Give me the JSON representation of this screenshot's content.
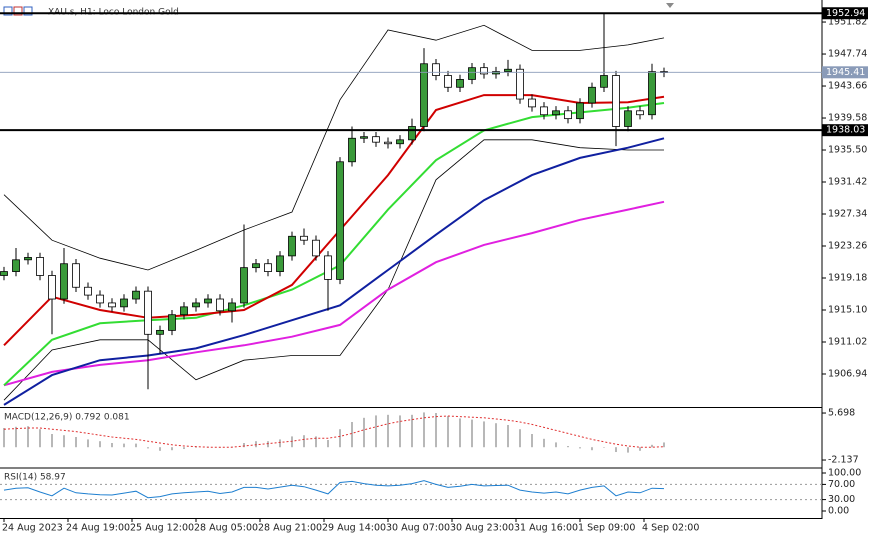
{
  "chart_data": [
    {
      "type": "candlestick",
      "title": "XAU.s, H1: Loco London Gold",
      "xlim": [
        -1,
        204.5
      ],
      "ylim": [
        1902.73,
        1954.63
      ],
      "yticks": [
        1951.82,
        1947.74,
        1943.66,
        1939.58,
        {
          "value": 1935.5,
          "label": "1935.50"
        },
        1931.42,
        1927.34,
        1923.26,
        1919.18,
        {
          "value": 1915.1,
          "label": "1915.10"
        },
        1911.02,
        1906.94
      ],
      "xticks": [
        {
          "value": 0,
          "label": "24 Aug 2023"
        },
        {
          "value": 16,
          "label": "24 Aug 19:00"
        },
        {
          "value": 32,
          "label": "25 Aug 12:00"
        },
        {
          "value": 48,
          "label": "28 Aug 05:00"
        },
        {
          "value": 64,
          "label": "28 Aug 21:00"
        },
        {
          "value": 80,
          "label": "29 Aug 14:00"
        },
        {
          "value": 96,
          "label": "30 Aug 07:00"
        },
        {
          "value": 112,
          "label": "30 Aug 23:00"
        },
        {
          "value": 128,
          "label": "31 Aug 16:00"
        },
        {
          "value": 144,
          "label": "1 Sep 09:00"
        },
        {
          "value": 160,
          "label": "4 Sep 02:00"
        }
      ],
      "bull_color": "#3a9a3a",
      "bear_color": "#ffffff",
      "x": [
        0,
        3,
        6,
        9,
        12,
        15,
        18,
        21,
        24,
        27,
        30,
        33,
        36,
        39,
        42,
        45,
        48,
        51,
        54,
        57,
        60,
        63,
        66,
        69,
        72,
        75,
        78,
        81,
        84,
        87,
        90,
        93,
        96,
        99,
        102,
        105,
        108,
        111,
        114,
        117,
        120,
        123,
        126,
        129,
        132,
        135,
        138,
        141,
        144,
        147,
        150,
        153,
        156,
        159,
        162,
        165
      ],
      "open": [
        1919.5,
        1920.0,
        1921.5,
        1921.8,
        1919.5,
        1916.5,
        1921.0,
        1918.0,
        1917.0,
        1916.0,
        1915.5,
        1916.5,
        1917.5,
        1912.0,
        1912.5,
        1914.5,
        1915.5,
        1916.0,
        1916.5,
        1915.0,
        1916.0,
        1920.5,
        1921.0,
        1920.0,
        1922.0,
        1924.5,
        1924.0,
        1922.0,
        1919.0,
        1934.0,
        1937.0,
        1937.2,
        1936.5,
        1936.3,
        1936.8,
        1938.5,
        1946.5,
        1945.0,
        1943.5,
        1944.5,
        1946.0,
        1945.2,
        1945.5,
        1945.8,
        1942.0,
        1941.0,
        1940.0,
        1940.5,
        1939.5,
        1941.5,
        1943.5,
        1945.0,
        1938.5,
        1940.5,
        1940.0,
        1945.5
      ],
      "high": [
        1920.6,
        1923.0,
        1922.4,
        1922.4,
        1920.1,
        1923.0,
        1921.6,
        1918.6,
        1917.6,
        1916.6,
        1917.1,
        1918.1,
        1918.1,
        1913.1,
        1915.1,
        1916.1,
        1916.6,
        1917.1,
        1917.1,
        1916.6,
        1926.0,
        1921.6,
        1921.6,
        1922.6,
        1925.1,
        1925.5,
        1924.6,
        1922.6,
        1934.6,
        1938.5,
        1937.8,
        1937.8,
        1937.1,
        1937.4,
        1939.5,
        1948.5,
        1947.1,
        1945.6,
        1945.1,
        1946.6,
        1946.6,
        1946.1,
        1947.0,
        1946.4,
        1942.6,
        1941.6,
        1941.1,
        1941.1,
        1942.1,
        1944.1,
        1953.0,
        1945.6,
        1941.1,
        1941.1,
        1946.5,
        1946.0
      ],
      "low": [
        1918.9,
        1919.4,
        1920.9,
        1918.9,
        1912.0,
        1915.9,
        1917.4,
        1916.4,
        1915.4,
        1914.9,
        1914.9,
        1915.9,
        1905.0,
        1909.5,
        1911.9,
        1913.9,
        1914.9,
        1915.4,
        1914.4,
        1913.5,
        1915.4,
        1919.9,
        1919.4,
        1919.4,
        1921.4,
        1923.4,
        1921.4,
        1915.0,
        1918.4,
        1933.4,
        1936.4,
        1935.9,
        1935.7,
        1935.7,
        1936.2,
        1937.9,
        1944.4,
        1942.9,
        1942.9,
        1943.9,
        1944.6,
        1944.6,
        1944.9,
        1941.4,
        1940.4,
        1939.4,
        1939.4,
        1938.9,
        1938.9,
        1940.9,
        1942.9,
        1936.0,
        1937.9,
        1939.4,
        1939.4,
        1944.8
      ],
      "close": [
        1920.0,
        1921.5,
        1921.8,
        1919.5,
        1916.5,
        1921.0,
        1918.0,
        1917.0,
        1916.0,
        1915.5,
        1916.5,
        1917.5,
        1912.0,
        1912.5,
        1914.5,
        1915.5,
        1916.0,
        1916.5,
        1915.0,
        1916.0,
        1920.5,
        1921.0,
        1920.0,
        1922.0,
        1924.5,
        1924.0,
        1922.0,
        1919.0,
        1934.0,
        1937.0,
        1937.2,
        1936.5,
        1936.3,
        1936.8,
        1938.5,
        1946.5,
        1945.0,
        1943.5,
        1944.5,
        1946.0,
        1945.2,
        1945.5,
        1945.8,
        1942.0,
        1941.0,
        1940.0,
        1940.5,
        1939.5,
        1941.5,
        1943.5,
        1945.0,
        1938.5,
        1940.5,
        1940.0,
        1945.5,
        1945.41
      ],
      "series": [
        {
          "color": "#000000",
          "width": 0.8,
          "x": [
            0,
            12,
            24,
            36,
            48,
            60,
            72,
            84,
            96,
            108,
            120,
            132,
            144,
            156,
            165
          ],
          "values": [
            1929.8,
            1924.0,
            1921.7,
            1920.2,
            1922.7,
            1925.3,
            1927.6,
            1941.9,
            1950.8,
            1949.5,
            1951.4,
            1948.2,
            1948.2,
            1948.9,
            1949.8
          ]
        },
        {
          "color": "#000000",
          "width": 0.8,
          "x": [
            0,
            12,
            24,
            36,
            48,
            60,
            72,
            84,
            96,
            108,
            120,
            132,
            144,
            156,
            165
          ],
          "values": [
            1903.6,
            1910.0,
            1911.3,
            1911.3,
            1906.2,
            1908.7,
            1909.3,
            1909.3,
            1917.7,
            1931.7,
            1936.8,
            1936.8,
            1935.8,
            1935.5,
            1935.5
          ]
        },
        {
          "color": "#e020e0",
          "width": 2,
          "x": [
            0,
            12,
            24,
            36,
            48,
            60,
            72,
            84,
            96,
            108,
            120,
            132,
            144,
            156,
            165
          ],
          "values": [
            1905.5,
            1907.2,
            1908.1,
            1908.7,
            1909.7,
            1910.6,
            1911.7,
            1913.2,
            1917.7,
            1921.2,
            1923.4,
            1924.9,
            1926.6,
            1927.9,
            1928.9
          ]
        },
        {
          "color": "#1020a0",
          "width": 2,
          "x": [
            0,
            12,
            24,
            36,
            48,
            60,
            72,
            84,
            96,
            108,
            120,
            132,
            144,
            156,
            165
          ],
          "values": [
            1903.0,
            1906.8,
            1908.7,
            1909.3,
            1910.2,
            1911.9,
            1913.8,
            1915.7,
            1920.2,
            1924.7,
            1929.1,
            1932.3,
            1934.5,
            1935.8,
            1937.0
          ]
        },
        {
          "color": "#33dd33",
          "width": 2,
          "x": [
            0,
            12,
            24,
            36,
            48,
            60,
            72,
            84,
            96,
            108,
            120,
            132,
            144,
            156,
            165
          ],
          "values": [
            1905.5,
            1911.3,
            1913.4,
            1913.8,
            1914.1,
            1915.7,
            1917.7,
            1920.8,
            1927.9,
            1934.2,
            1938.0,
            1939.7,
            1940.3,
            1940.9,
            1941.5
          ]
        },
        {
          "color": "#d00000",
          "width": 2,
          "x": [
            0,
            12,
            24,
            36,
            48,
            60,
            72,
            84,
            96,
            108,
            120,
            132,
            144,
            156,
            165
          ],
          "values": [
            1910.6,
            1916.8,
            1915.1,
            1914.1,
            1914.5,
            1915.1,
            1918.3,
            1925.3,
            1932.3,
            1940.6,
            1942.5,
            1942.5,
            1941.5,
            1941.6,
            1942.3
          ]
        }
      ],
      "levels": [
        {
          "value": 1952.94,
          "color": "#000000",
          "width": 2
        },
        {
          "value": 1938.03,
          "color": "#000000",
          "width": 2
        },
        {
          "value": 1945.41,
          "color": "#8a9bb8",
          "width": 0.8
        }
      ]
    },
    {
      "type": "macd",
      "title": "MACD(12,26,9) 0.792 0.081",
      "xlim": [
        -1,
        204.5
      ],
      "ylim": [
        -3.3,
        6.37
      ],
      "yticks": [
        5.698,
        -2.137
      ],
      "x": [
        0,
        3,
        6,
        9,
        12,
        15,
        18,
        21,
        24,
        27,
        30,
        33,
        36,
        39,
        42,
        45,
        48,
        51,
        54,
        57,
        60,
        63,
        66,
        69,
        72,
        75,
        78,
        81,
        84,
        87,
        90,
        93,
        96,
        99,
        102,
        105,
        108,
        111,
        114,
        117,
        120,
        123,
        126,
        129,
        132,
        135,
        138,
        141,
        144,
        147,
        150,
        153,
        156,
        159,
        162,
        165
      ],
      "series": [
        {
          "kind": "bar",
          "color": "#b8b8b8",
          "values": [
            3.2,
            3.4,
            3.5,
            3.0,
            2.2,
            2.0,
            1.7,
            1.3,
            1.0,
            0.7,
            0.6,
            0.6,
            -0.2,
            -0.6,
            -0.5,
            -0.3,
            -0.1,
            0.1,
            0.0,
            0.1,
            0.7,
            1.0,
            1.0,
            1.3,
            1.8,
            2.0,
            1.8,
            1.2,
            3.0,
            4.2,
            4.9,
            5.3,
            5.4,
            5.3,
            5.4,
            5.8,
            5.7,
            5.2,
            4.8,
            4.6,
            4.3,
            4.0,
            3.7,
            3.0,
            2.2,
            1.4,
            0.8,
            0.2,
            -0.2,
            -0.5,
            0.0,
            -0.8,
            -0.9,
            -0.6,
            0.4,
            0.792
          ]
        },
        {
          "kind": "line",
          "color": "#e03030",
          "values": [
            3.0,
            3.1,
            3.2,
            3.2,
            3.0,
            2.8,
            2.6,
            2.3,
            2.0,
            1.7,
            1.5,
            1.3,
            1.0,
            0.7,
            0.4,
            0.2,
            0.1,
            0.0,
            0.0,
            0.0,
            0.2,
            0.4,
            0.6,
            0.8,
            1.0,
            1.3,
            1.5,
            1.5,
            1.8,
            2.3,
            2.9,
            3.4,
            3.9,
            4.3,
            4.6,
            4.9,
            5.1,
            5.2,
            5.1,
            5.0,
            4.9,
            4.7,
            4.5,
            4.2,
            3.8,
            3.3,
            2.8,
            2.3,
            1.8,
            1.3,
            0.9,
            0.5,
            0.2,
            0.0,
            0.0,
            0.081
          ]
        }
      ]
    },
    {
      "type": "line",
      "title": "RSI(14) 58.97",
      "xlim": [
        -1,
        204.5
      ],
      "ylim": [
        -18.4,
        110.5
      ],
      "yticks": [
        {
          "value": 100,
          "label": "100.00"
        },
        {
          "value": 70,
          "label": "70.00"
        },
        {
          "value": 30,
          "label": "30.00"
        },
        {
          "value": 0,
          "label": "0.00"
        }
      ],
      "x": [
        0,
        3,
        6,
        9,
        12,
        15,
        18,
        21,
        24,
        27,
        30,
        33,
        36,
        39,
        42,
        45,
        48,
        51,
        54,
        57,
        60,
        63,
        66,
        69,
        72,
        75,
        78,
        81,
        84,
        87,
        90,
        93,
        96,
        99,
        102,
        105,
        108,
        111,
        114,
        117,
        120,
        123,
        126,
        129,
        132,
        135,
        138,
        141,
        144,
        147,
        150,
        153,
        156,
        159,
        162,
        165
      ],
      "series": [
        {
          "color": "#1e7fd0",
          "values": [
            55,
            60,
            61,
            50,
            40,
            60,
            48,
            45,
            43,
            42,
            47,
            52,
            35,
            38,
            45,
            48,
            50,
            52,
            46,
            50,
            62,
            62,
            58,
            63,
            68,
            64,
            55,
            45,
            75,
            78,
            72,
            68,
            66,
            68,
            72,
            80,
            70,
            62,
            65,
            70,
            66,
            67,
            68,
            55,
            50,
            47,
            50,
            45,
            55,
            62,
            66,
            40,
            50,
            48,
            60,
            58.97
          ]
        }
      ]
    }
  ]
}
